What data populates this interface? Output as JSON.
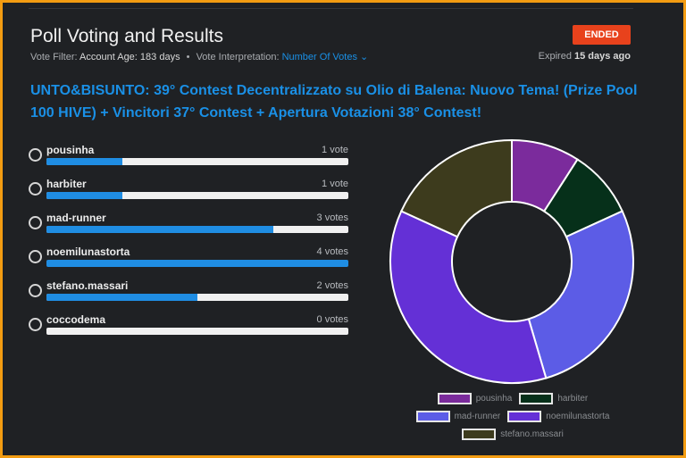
{
  "header": {
    "title": "Poll Voting and Results",
    "status_badge": "ENDED",
    "vote_filter_label": "Vote Filter:",
    "account_age_label": "Account Age:",
    "account_age_value": "183 days",
    "interpretation_label": "Vote Interpretation:",
    "interpretation_value": "Number Of Votes",
    "expired_prefix": "Expired",
    "expired_value": "15 days ago"
  },
  "post_title": "UNTO&BISUNTO: 39° Contest Decentralizzato su Olio di Balena: Nuovo Tema! (Prize Pool 100 HIVE) + Vincitori 37° Contest + Apertura Votazioni 38° Contest!",
  "options": [
    {
      "name": "pousinha",
      "votes_text": "1 vote",
      "votes": 1,
      "fill_fraction": 0.25
    },
    {
      "name": "harbiter",
      "votes_text": "1 vote",
      "votes": 1,
      "fill_fraction": 0.25
    },
    {
      "name": "mad-runner",
      "votes_text": "3 votes",
      "votes": 3,
      "fill_fraction": 0.75
    },
    {
      "name": "noemilunastorta",
      "votes_text": "4 votes",
      "votes": 4,
      "fill_fraction": 1.0
    },
    {
      "name": "stefano.massari",
      "votes_text": "2 votes",
      "votes": 2,
      "fill_fraction": 0.5
    },
    {
      "name": "coccodema",
      "votes_text": "0 votes",
      "votes": 0,
      "fill_fraction": 0.0
    }
  ],
  "chart_data": {
    "type": "pie",
    "donut": true,
    "categories": [
      "pousinha",
      "harbiter",
      "mad-runner",
      "noemilunastorta",
      "stefano.massari"
    ],
    "values": [
      1,
      1,
      3,
      4,
      2
    ],
    "colors": [
      "#7b2b9c",
      "#06301a",
      "#5c5ce6",
      "#6430d6",
      "#3d3b1d"
    ],
    "legend_position": "bottom"
  }
}
